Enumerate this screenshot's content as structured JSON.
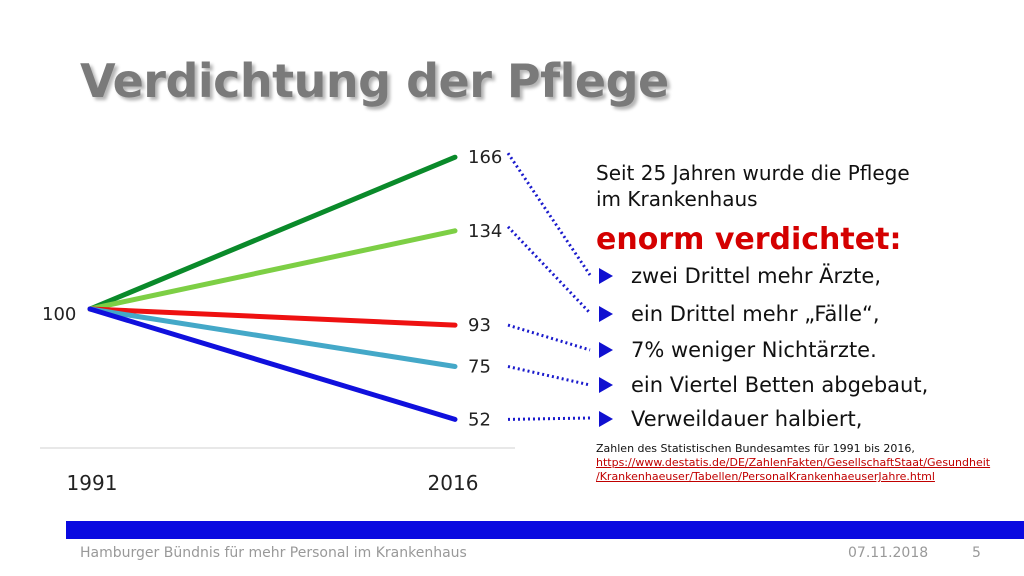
{
  "slide": {
    "title": "Verdichtung der Pflege",
    "intro_line1": "Seit 25 Jahren wurde die Pflege",
    "intro_line2": "im Krankenhaus",
    "emphasis": "enorm verdichtet:",
    "bullets": [
      "zwei Drittel mehr Ärzte,",
      "ein Drittel mehr „Fälle“,",
      "7% weniger Nichtärzte.",
      "ein Viertel Betten abgebaut,",
      "Verweildauer halbiert,"
    ],
    "source_text": "Zahlen des Statistischen Bundesamtes für 1991 bis 2016,",
    "source_link_line1": "https://www.destatis.de/DE/ZahlenFakten/GesellschaftStaat/Gesundheit",
    "source_link_line2": "/Krankenhaeuser/Tabellen/PersonalKrankenhaeuserJahre.html",
    "footer_left": "Hamburger Bündnis für mehr Personal im Krankenhaus",
    "footer_date": "07.11.2018",
    "footer_page": "5",
    "colors": {
      "title": "#7a7a7a",
      "emphasis": "#d40000",
      "bar": "#0a0ae0",
      "connector": "#1a1acc"
    }
  },
  "chart_data": {
    "type": "line",
    "x": [
      "1991",
      "2016"
    ],
    "start_label": "100",
    "ylim": [
      40,
      175
    ],
    "series": [
      {
        "values": [
          100,
          166
        ],
        "end_label": "166",
        "color": "#0a8a2a"
      },
      {
        "values": [
          100,
          134
        ],
        "end_label": "134",
        "color": "#7dcf45"
      },
      {
        "values": [
          100,
          93
        ],
        "end_label": "93",
        "color": "#ee1111"
      },
      {
        "values": [
          100,
          75
        ],
        "end_label": "75",
        "color": "#44a8c8"
      },
      {
        "values": [
          100,
          52
        ],
        "end_label": "52",
        "color": "#1010dd"
      }
    ],
    "grid": false,
    "legend": "none"
  }
}
